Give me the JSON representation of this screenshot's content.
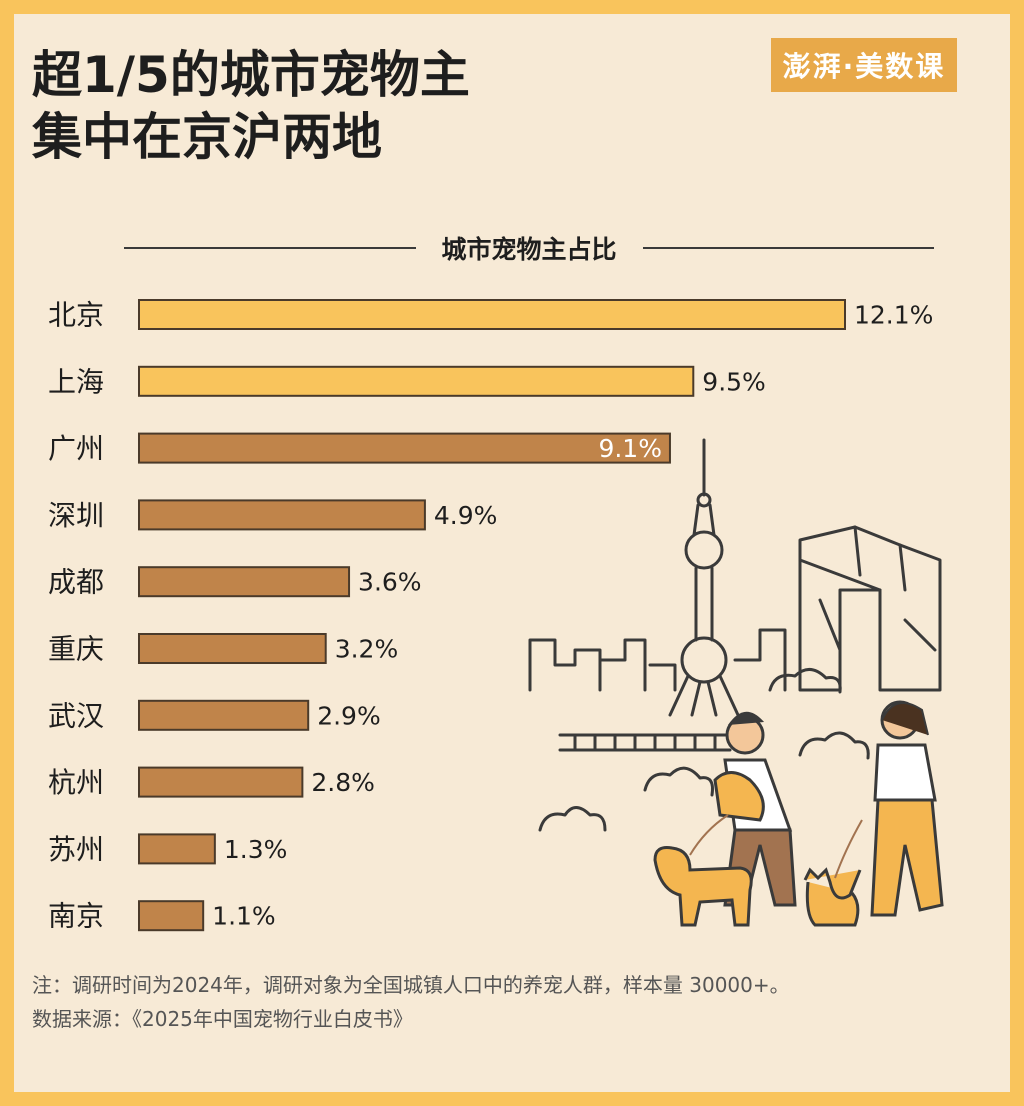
{
  "title_line1": "超1/5的城市宠物主",
  "title_line2": "集中在京沪两地",
  "brand": "澎湃·美数课",
  "colors": {
    "frame": "#f9c45c",
    "background": "#f7ead6",
    "bar_highlight": "#f9c45c",
    "bar_normal": "#c0844a",
    "bar_stroke": "#4a3a2a",
    "text": "#1e1e1e"
  },
  "chart_data": {
    "type": "bar",
    "orientation": "horizontal",
    "title": "城市宠物主占比",
    "categories": [
      "北京",
      "上海",
      "广州",
      "深圳",
      "成都",
      "重庆",
      "武汉",
      "杭州",
      "苏州",
      "南京"
    ],
    "values": [
      12.1,
      9.5,
      9.1,
      4.9,
      3.6,
      3.2,
      2.9,
      2.8,
      1.3,
      1.1
    ],
    "value_labels": [
      "12.1%",
      "9.5%",
      "9.1%",
      "4.9%",
      "3.6%",
      "3.2%",
      "2.9%",
      "2.8%",
      "1.3%",
      "1.1%"
    ],
    "highlighted": [
      "北京",
      "上海"
    ],
    "unit": "%",
    "xlim": [
      0,
      12.1
    ],
    "grid": false,
    "legend": "none"
  },
  "note": "注：调研时间为2024年，调研对象为全国城镇人口中的养宠人群，样本量 30000+。",
  "source": "数据来源：《2025年中国宠物行业白皮书》"
}
